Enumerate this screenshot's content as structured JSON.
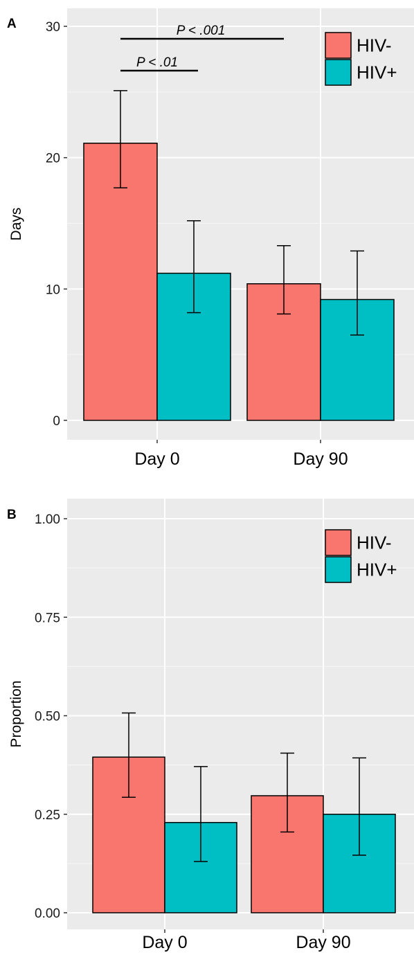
{
  "chart_data": [
    {
      "panel": "A",
      "type": "bar",
      "ylabel": "Days",
      "categories": [
        "Day 0",
        "Day 90"
      ],
      "ylim": [
        0,
        30
      ],
      "yticks": [
        0,
        10,
        20,
        30
      ],
      "series": [
        {
          "name": "HIV-",
          "color": "#F8766D",
          "values": [
            21.1,
            10.4
          ],
          "err_low": [
            17.7,
            8.1
          ],
          "err_high": [
            25.1,
            13.3
          ]
        },
        {
          "name": "HIV+",
          "color": "#00BFC4",
          "values": [
            11.2,
            9.2
          ],
          "err_low": [
            8.2,
            6.5
          ],
          "err_high": [
            15.2,
            12.9
          ]
        }
      ],
      "annotations": [
        {
          "text": "P < .01",
          "from": "Day 0 HIV-",
          "to": "Day 0 HIV+"
        },
        {
          "text": "P < .001",
          "from": "Day 0 HIV-",
          "to": "Day 90 HIV-"
        }
      ],
      "legend": "top-right",
      "grid": true
    },
    {
      "panel": "B",
      "type": "bar",
      "ylabel": "Proportion",
      "categories": [
        "Day 0",
        "Day 90"
      ],
      "ylim": [
        0,
        1
      ],
      "yticks": [
        0,
        0.25,
        0.5,
        0.75,
        1
      ],
      "ytick_labels": [
        "0.00",
        "0.25",
        "0.50",
        "0.75",
        "1.00"
      ],
      "series": [
        {
          "name": "HIV-",
          "color": "#F8766D",
          "values": [
            0.395,
            0.297
          ],
          "err_low": [
            0.293,
            0.205
          ],
          "err_high": [
            0.507,
            0.405
          ]
        },
        {
          "name": "HIV+",
          "color": "#00BFC4",
          "values": [
            0.229,
            0.25
          ],
          "err_low": [
            0.13,
            0.146
          ],
          "err_high": [
            0.371,
            0.393
          ]
        }
      ],
      "legend": "top-right",
      "grid": true
    }
  ]
}
